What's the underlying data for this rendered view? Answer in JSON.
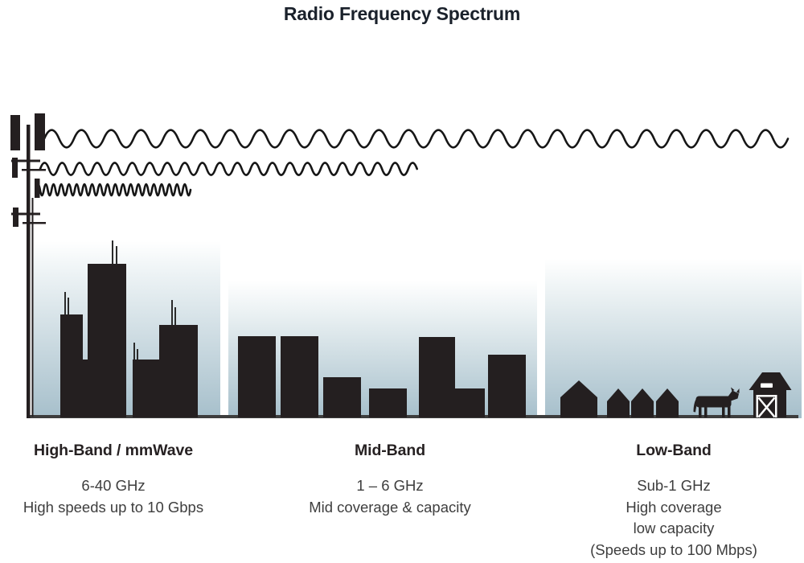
{
  "title": "Radio Frequency Spectrum",
  "colors": {
    "silhouette": "#241f20",
    "sky_gradient_top": "#ffffff",
    "sky_gradient_bottom": "#a6bfcb",
    "ground_line": "#3d3d3d",
    "title_ink": "#1a212b",
    "body_text": "#3e3e3e"
  },
  "icons": {
    "transmitter": "cell-tower-icon",
    "high_band_scene": "skyscrapers-icons",
    "mid_band_scene": "low-rise-buildings-icons",
    "low_band_scene": "houses-cow-barn-icons"
  },
  "waves": [
    {
      "name": "low-band-wave",
      "wavelength": "long",
      "reach": "spans full width"
    },
    {
      "name": "mid-band-wave",
      "wavelength": "medium",
      "reach": "spans about half width"
    },
    {
      "name": "high-band-wave",
      "wavelength": "short",
      "reach": "spans short distance"
    }
  ],
  "bands": [
    {
      "heading": "High-Band / mmWave",
      "lines": [
        "6-40 GHz",
        "High speeds up to 10 Gbps"
      ]
    },
    {
      "heading": "Mid-Band",
      "lines": [
        "1 – 6 GHz",
        "Mid coverage & capacity"
      ]
    },
    {
      "heading": "Low-Band",
      "lines": [
        "Sub-1 GHz",
        "High coverage",
        "low capacity",
        "(Speeds up to 100 Mbps)"
      ]
    }
  ]
}
